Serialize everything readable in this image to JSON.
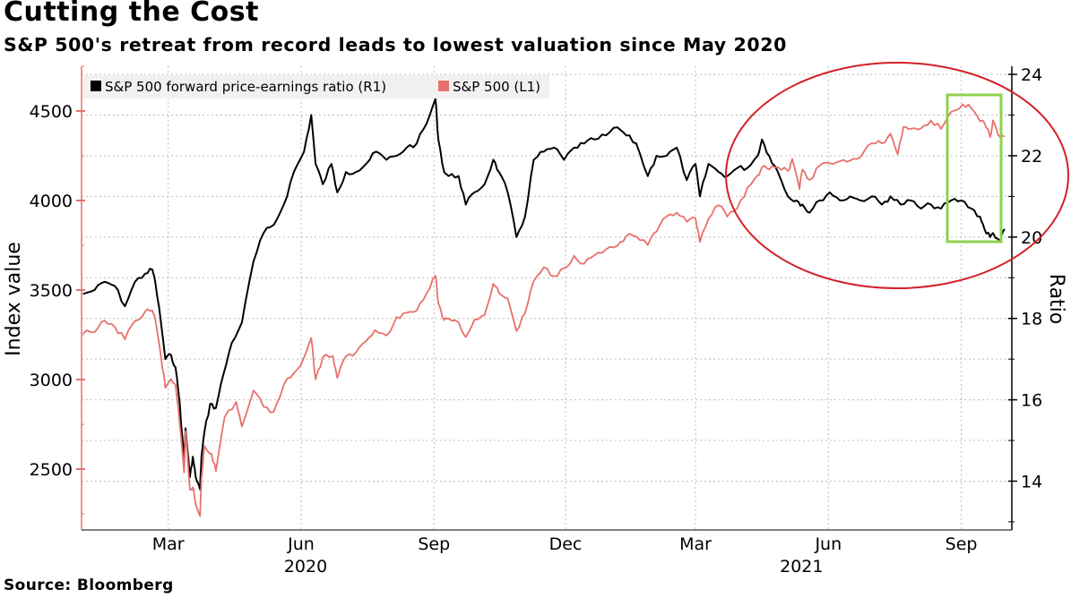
{
  "header": {
    "title": "Cutting the Cost",
    "subtitle": "S&P 500's retreat from record leads to lowest valuation since May 2020"
  },
  "footer": {
    "source": "Source: Bloomberg"
  },
  "colors": {
    "pe_line": "#000000",
    "spx_line": "#e8706c",
    "ellipse": "#d42127",
    "highlight_box": "#8fd14f",
    "grid": "#bdbdbd"
  },
  "chart_data": {
    "type": "line",
    "x_tick_labels": [
      "Mar",
      "Jun",
      "Sep",
      "Dec",
      "Mar",
      "Jun",
      "Sep"
    ],
    "year_labels": [
      "2020",
      "2021"
    ],
    "left_axis": {
      "label": "Index value",
      "ticks": [
        2500,
        3000,
        3500,
        4000,
        4500
      ],
      "range": [
        2160,
        4750
      ]
    },
    "right_axis": {
      "label": "Ratio",
      "ticks": [
        14,
        16,
        18,
        20,
        22,
        24
      ],
      "range": [
        12.8,
        24.2
      ]
    },
    "legend": {
      "position": "top-left"
    },
    "series": [
      {
        "name": "S&P 500 forward price-earnings ratio (R1)",
        "axis": "right",
        "points": [
          [
            "2020-01-02",
            18.6
          ],
          [
            "2020-01-10",
            18.7
          ],
          [
            "2020-01-17",
            18.9
          ],
          [
            "2020-01-24",
            18.8
          ],
          [
            "2020-01-31",
            18.3
          ],
          [
            "2020-02-07",
            18.9
          ],
          [
            "2020-02-14",
            19.1
          ],
          [
            "2020-02-19",
            19.2
          ],
          [
            "2020-02-21",
            18.9
          ],
          [
            "2020-02-25",
            17.9
          ],
          [
            "2020-02-28",
            17.0
          ],
          [
            "2020-03-03",
            17.1
          ],
          [
            "2020-03-06",
            16.8
          ],
          [
            "2020-03-09",
            15.9
          ],
          [
            "2020-03-12",
            14.5
          ],
          [
            "2020-03-13",
            15.3
          ],
          [
            "2020-03-16",
            14.1
          ],
          [
            "2020-03-18",
            14.6
          ],
          [
            "2020-03-20",
            14.1
          ],
          [
            "2020-03-23",
            13.8
          ],
          [
            "2020-03-24",
            14.6
          ],
          [
            "2020-03-26",
            15.2
          ],
          [
            "2020-03-30",
            15.9
          ],
          [
            "2020-04-03",
            15.8
          ],
          [
            "2020-04-08",
            16.6
          ],
          [
            "2020-04-14",
            17.4
          ],
          [
            "2020-04-21",
            17.9
          ],
          [
            "2020-04-29",
            19.4
          ],
          [
            "2020-05-06",
            20.1
          ],
          [
            "2020-05-13",
            20.3
          ],
          [
            "2020-05-20",
            20.8
          ],
          [
            "2020-05-27",
            21.6
          ],
          [
            "2020-06-03",
            22.1
          ],
          [
            "2020-06-08",
            23.0
          ],
          [
            "2020-06-11",
            21.8
          ],
          [
            "2020-06-16",
            21.3
          ],
          [
            "2020-06-22",
            21.8
          ],
          [
            "2020-06-26",
            21.1
          ],
          [
            "2020-07-02",
            21.6
          ],
          [
            "2020-07-09",
            21.6
          ],
          [
            "2020-07-16",
            21.8
          ],
          [
            "2020-07-23",
            22.1
          ],
          [
            "2020-07-30",
            21.9
          ],
          [
            "2020-08-06",
            22.0
          ],
          [
            "2020-08-13",
            22.2
          ],
          [
            "2020-08-20",
            22.3
          ],
          [
            "2020-08-27",
            22.8
          ],
          [
            "2020-09-02",
            23.4
          ],
          [
            "2020-09-04",
            22.4
          ],
          [
            "2020-09-08",
            21.6
          ],
          [
            "2020-09-11",
            21.5
          ],
          [
            "2020-09-18",
            21.5
          ],
          [
            "2020-09-23",
            20.8
          ],
          [
            "2020-09-29",
            21.1
          ],
          [
            "2020-10-06",
            21.3
          ],
          [
            "2020-10-12",
            21.9
          ],
          [
            "2020-10-16",
            21.6
          ],
          [
            "2020-10-22",
            21.1
          ],
          [
            "2020-10-28",
            20.0
          ],
          [
            "2020-11-03",
            20.5
          ],
          [
            "2020-11-09",
            21.9
          ],
          [
            "2020-11-16",
            22.1
          ],
          [
            "2020-11-23",
            22.2
          ],
          [
            "2020-11-30",
            21.9
          ],
          [
            "2020-12-07",
            22.2
          ],
          [
            "2020-12-14",
            22.3
          ],
          [
            "2020-12-21",
            22.4
          ],
          [
            "2020-12-29",
            22.5
          ],
          [
            "2021-01-06",
            22.7
          ],
          [
            "2021-01-12",
            22.5
          ],
          [
            "2021-01-19",
            22.3
          ],
          [
            "2021-01-27",
            21.5
          ],
          [
            "2021-02-02",
            22.0
          ],
          [
            "2021-02-09",
            22.0
          ],
          [
            "2021-02-16",
            22.2
          ],
          [
            "2021-02-23",
            21.4
          ],
          [
            "2021-03-01",
            21.8
          ],
          [
            "2021-03-04",
            21.0
          ],
          [
            "2021-03-10",
            21.8
          ],
          [
            "2021-03-17",
            21.6
          ],
          [
            "2021-03-23",
            21.5
          ],
          [
            "2021-03-30",
            21.7
          ],
          [
            "2021-04-06",
            21.7
          ],
          [
            "2021-04-13",
            22.0
          ],
          [
            "2021-04-16",
            22.4
          ],
          [
            "2021-04-21",
            22.0
          ],
          [
            "2021-04-27",
            21.6
          ],
          [
            "2021-05-04",
            21.0
          ],
          [
            "2021-05-10",
            20.9
          ],
          [
            "2021-05-14",
            20.8
          ],
          [
            "2021-05-19",
            20.6
          ],
          [
            "2021-05-26",
            20.9
          ],
          [
            "2021-06-02",
            21.1
          ],
          [
            "2021-06-09",
            20.9
          ],
          [
            "2021-06-16",
            21.0
          ],
          [
            "2021-06-23",
            20.9
          ],
          [
            "2021-07-01",
            21.0
          ],
          [
            "2021-07-08",
            20.8
          ],
          [
            "2021-07-14",
            21.0
          ],
          [
            "2021-07-21",
            20.8
          ],
          [
            "2021-07-28",
            20.9
          ],
          [
            "2021-08-04",
            20.7
          ],
          [
            "2021-08-11",
            20.8
          ],
          [
            "2021-08-18",
            20.7
          ],
          [
            "2021-08-25",
            20.9
          ],
          [
            "2021-09-01",
            20.9
          ],
          [
            "2021-09-08",
            20.7
          ],
          [
            "2021-09-14",
            20.5
          ],
          [
            "2021-09-17",
            20.2
          ],
          [
            "2021-09-21",
            20.0
          ],
          [
            "2021-09-23",
            20.1
          ],
          [
            "2021-09-28",
            19.9
          ],
          [
            "2021-10-01",
            20.2
          ]
        ]
      },
      {
        "name": "S&P 500 (L1)",
        "axis": "left",
        "points": [
          [
            "2020-01-02",
            3258
          ],
          [
            "2020-01-10",
            3265
          ],
          [
            "2020-01-17",
            3329
          ],
          [
            "2020-01-24",
            3295
          ],
          [
            "2020-01-31",
            3225
          ],
          [
            "2020-02-07",
            3327
          ],
          [
            "2020-02-14",
            3380
          ],
          [
            "2020-02-19",
            3386
          ],
          [
            "2020-02-21",
            3337
          ],
          [
            "2020-02-25",
            3128
          ],
          [
            "2020-02-28",
            2954
          ],
          [
            "2020-03-03",
            3003
          ],
          [
            "2020-03-06",
            2972
          ],
          [
            "2020-03-09",
            2747
          ],
          [
            "2020-03-12",
            2481
          ],
          [
            "2020-03-13",
            2711
          ],
          [
            "2020-03-16",
            2386
          ],
          [
            "2020-03-18",
            2398
          ],
          [
            "2020-03-20",
            2305
          ],
          [
            "2020-03-23",
            2237
          ],
          [
            "2020-03-24",
            2447
          ],
          [
            "2020-03-26",
            2630
          ],
          [
            "2020-03-31",
            2585
          ],
          [
            "2020-04-03",
            2489
          ],
          [
            "2020-04-09",
            2790
          ],
          [
            "2020-04-17",
            2875
          ],
          [
            "2020-04-21",
            2737
          ],
          [
            "2020-04-29",
            2939
          ],
          [
            "2020-05-06",
            2848
          ],
          [
            "2020-05-13",
            2820
          ],
          [
            "2020-05-20",
            2972
          ],
          [
            "2020-05-27",
            3036
          ],
          [
            "2020-06-03",
            3123
          ],
          [
            "2020-06-08",
            3232
          ],
          [
            "2020-06-11",
            3002
          ],
          [
            "2020-06-16",
            3125
          ],
          [
            "2020-06-23",
            3131
          ],
          [
            "2020-06-26",
            3009
          ],
          [
            "2020-07-02",
            3130
          ],
          [
            "2020-07-09",
            3152
          ],
          [
            "2020-07-16",
            3215
          ],
          [
            "2020-07-22",
            3276
          ],
          [
            "2020-07-30",
            3246
          ],
          [
            "2020-08-06",
            3349
          ],
          [
            "2020-08-13",
            3373
          ],
          [
            "2020-08-20",
            3385
          ],
          [
            "2020-08-27",
            3484
          ],
          [
            "2020-09-02",
            3580
          ],
          [
            "2020-09-04",
            3427
          ],
          [
            "2020-09-08",
            3332
          ],
          [
            "2020-09-11",
            3341
          ],
          [
            "2020-09-18",
            3319
          ],
          [
            "2020-09-23",
            3237
          ],
          [
            "2020-09-29",
            3335
          ],
          [
            "2020-10-06",
            3361
          ],
          [
            "2020-10-12",
            3535
          ],
          [
            "2020-10-16",
            3483
          ],
          [
            "2020-10-22",
            3453
          ],
          [
            "2020-10-28",
            3271
          ],
          [
            "2020-11-03",
            3369
          ],
          [
            "2020-11-09",
            3550
          ],
          [
            "2020-11-16",
            3627
          ],
          [
            "2020-11-23",
            3578
          ],
          [
            "2020-11-30",
            3622
          ],
          [
            "2020-12-07",
            3692
          ],
          [
            "2020-12-14",
            3647
          ],
          [
            "2020-12-21",
            3694
          ],
          [
            "2020-12-29",
            3727
          ],
          [
            "2021-01-06",
            3748
          ],
          [
            "2021-01-12",
            3801
          ],
          [
            "2021-01-19",
            3799
          ],
          [
            "2021-01-27",
            3751
          ],
          [
            "2021-02-02",
            3826
          ],
          [
            "2021-02-09",
            3911
          ],
          [
            "2021-02-16",
            3933
          ],
          [
            "2021-02-23",
            3881
          ],
          [
            "2021-03-01",
            3902
          ],
          [
            "2021-03-04",
            3768
          ],
          [
            "2021-03-10",
            3898
          ],
          [
            "2021-03-17",
            3974
          ],
          [
            "2021-03-23",
            3910
          ],
          [
            "2021-03-30",
            3959
          ],
          [
            "2021-04-06",
            4073
          ],
          [
            "2021-04-13",
            4141
          ],
          [
            "2021-04-16",
            4185
          ],
          [
            "2021-04-21",
            4173
          ],
          [
            "2021-04-27",
            4187
          ],
          [
            "2021-05-04",
            4165
          ],
          [
            "2021-05-07",
            4232
          ],
          [
            "2021-05-12",
            4063
          ],
          [
            "2021-05-14",
            4173
          ],
          [
            "2021-05-19",
            4115
          ],
          [
            "2021-05-26",
            4195
          ],
          [
            "2021-06-02",
            4208
          ],
          [
            "2021-06-09",
            4219
          ],
          [
            "2021-06-16",
            4223
          ],
          [
            "2021-06-23",
            4241
          ],
          [
            "2021-07-01",
            4320
          ],
          [
            "2021-07-08",
            4320
          ],
          [
            "2021-07-14",
            4374
          ],
          [
            "2021-07-19",
            4258
          ],
          [
            "2021-07-23",
            4411
          ],
          [
            "2021-07-28",
            4400
          ],
          [
            "2021-08-04",
            4402
          ],
          [
            "2021-08-11",
            4447
          ],
          [
            "2021-08-18",
            4400
          ],
          [
            "2021-08-25",
            4496
          ],
          [
            "2021-09-02",
            4537
          ],
          [
            "2021-09-08",
            4514
          ],
          [
            "2021-09-14",
            4443
          ],
          [
            "2021-09-17",
            4433
          ],
          [
            "2021-09-21",
            4354
          ],
          [
            "2021-09-23",
            4448
          ],
          [
            "2021-09-28",
            4352
          ],
          [
            "2021-10-01",
            4357
          ]
        ]
      }
    ]
  }
}
